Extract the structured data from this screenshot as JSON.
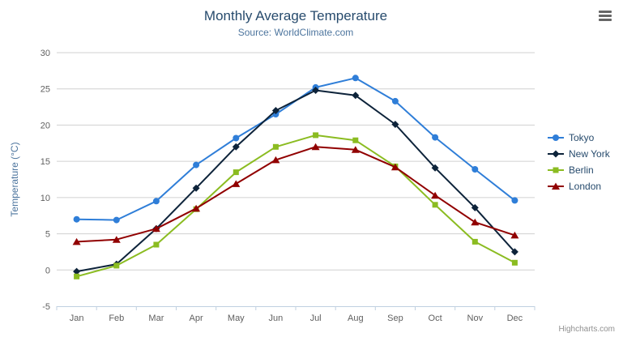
{
  "chart": {
    "title": "Monthly Average Temperature",
    "subtitle": "Source: WorldClimate.com",
    "credits": "Highcharts.com"
  },
  "chart_data": {
    "type": "line",
    "title": "Monthly Average Temperature",
    "subtitle": "Source: WorldClimate.com",
    "categories": [
      "Jan",
      "Feb",
      "Mar",
      "Apr",
      "May",
      "Jun",
      "Jul",
      "Aug",
      "Sep",
      "Oct",
      "Nov",
      "Dec"
    ],
    "series": [
      {
        "name": "Tokyo",
        "color": "#2f7ed8",
        "marker": "circle",
        "values": [
          7.0,
          6.9,
          9.5,
          14.5,
          18.2,
          21.5,
          25.2,
          26.5,
          23.3,
          18.3,
          13.9,
          9.6
        ]
      },
      {
        "name": "New York",
        "color": "#0d233a",
        "marker": "diamond",
        "values": [
          -0.2,
          0.8,
          5.7,
          11.3,
          17.0,
          22.0,
          24.8,
          24.1,
          20.1,
          14.1,
          8.6,
          2.5
        ]
      },
      {
        "name": "Berlin",
        "color": "#8bbc21",
        "marker": "square",
        "values": [
          -0.9,
          0.6,
          3.5,
          8.4,
          13.5,
          17.0,
          18.6,
          17.9,
          14.3,
          9.0,
          3.9,
          1.0
        ]
      },
      {
        "name": "London",
        "color": "#910000",
        "marker": "triangle",
        "values": [
          3.9,
          4.2,
          5.7,
          8.5,
          11.9,
          15.2,
          17.0,
          16.6,
          14.2,
          10.3,
          6.6,
          4.8
        ]
      }
    ],
    "xlabel": "",
    "ylabel": "Temperature (°C)",
    "ylim": [
      -5,
      30
    ],
    "ytick_step": 5,
    "grid": "horizontal",
    "legend_position": "right"
  }
}
